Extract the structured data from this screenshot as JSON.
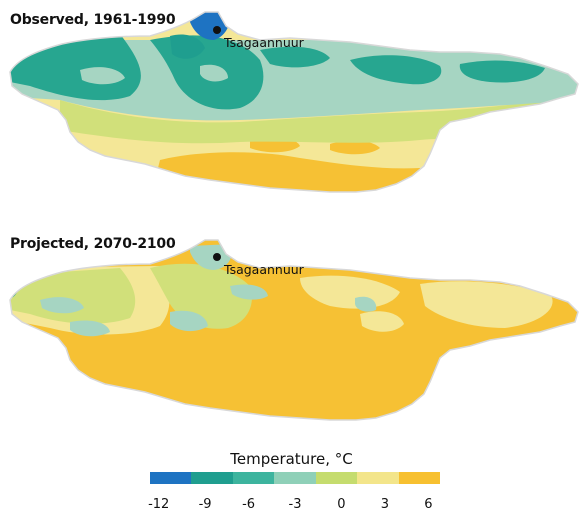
{
  "panels": {
    "observed": {
      "title": "Observed, 1961-1990",
      "place": "Tsagaannuur"
    },
    "projected": {
      "title": "Projected, 2070-2100",
      "place": "Tsagaannuur"
    }
  },
  "legend": {
    "title": "Temperature, °C",
    "ticks": [
      "-12",
      "-9",
      "-6",
      "-3",
      "0",
      "3",
      "6"
    ],
    "colors": [
      "#1e73c2",
      "#1f9e8f",
      "#3db49e",
      "#8fd0b8",
      "#c5dc6e",
      "#f3e58a",
      "#f7c030"
    ]
  },
  "colors": {
    "deep_blue": "#1e73c2",
    "teal": "#27a690",
    "mint": "#a6d5c2",
    "lime": "#d1e07a",
    "pale_yellow": "#f4e797",
    "gold": "#f6c134"
  }
}
